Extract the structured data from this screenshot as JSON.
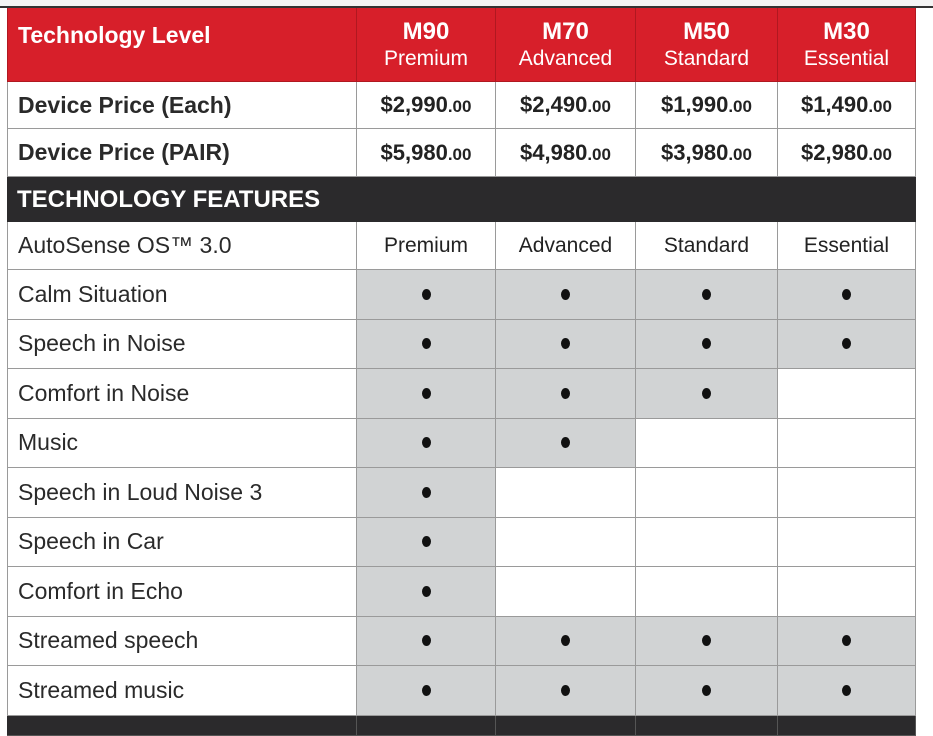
{
  "header": {
    "label": "Technology Level",
    "models": [
      {
        "model": "M90",
        "tier": "Premium"
      },
      {
        "model": "M70",
        "tier": "Advanced"
      },
      {
        "model": "M50",
        "tier": "Standard"
      },
      {
        "model": "M30",
        "tier": "Essential"
      }
    ]
  },
  "prices": [
    {
      "label": "Device Price (Each)",
      "values": [
        [
          "$2,990",
          ".00"
        ],
        [
          "$2,490",
          ".00"
        ],
        [
          "$1,990",
          ".00"
        ],
        [
          "$1,490",
          ".00"
        ]
      ]
    },
    {
      "label": "Device Price (PAIR)",
      "values": [
        [
          "$5,980",
          ".00"
        ],
        [
          "$4,980",
          ".00"
        ],
        [
          "$3,980",
          ".00"
        ],
        [
          "$2,980",
          ".00"
        ]
      ]
    }
  ],
  "section_title": "TECHNOLOGY FEATURES",
  "autosense": {
    "label": "AutoSense OS™ 3.0",
    "values": [
      "Premium",
      "Advanced",
      "Standard",
      "Essential"
    ]
  },
  "features": [
    {
      "label": "Calm Situation",
      "has": [
        true,
        true,
        true,
        true
      ]
    },
    {
      "label": "Speech in Noise",
      "has": [
        true,
        true,
        true,
        true
      ]
    },
    {
      "label": "Comfort in Noise",
      "has": [
        true,
        true,
        true,
        false
      ]
    },
    {
      "label": "Music",
      "has": [
        true,
        true,
        false,
        false
      ]
    },
    {
      "label": "Speech in Loud Noise 3",
      "has": [
        true,
        false,
        false,
        false
      ]
    },
    {
      "label": "Speech in Car",
      "has": [
        true,
        false,
        false,
        false
      ]
    },
    {
      "label": "Comfort in Echo",
      "has": [
        true,
        false,
        false,
        false
      ]
    },
    {
      "label": "Streamed speech",
      "has": [
        true,
        true,
        true,
        true
      ]
    },
    {
      "label": "Streamed music",
      "has": [
        true,
        true,
        true,
        true
      ]
    }
  ]
}
